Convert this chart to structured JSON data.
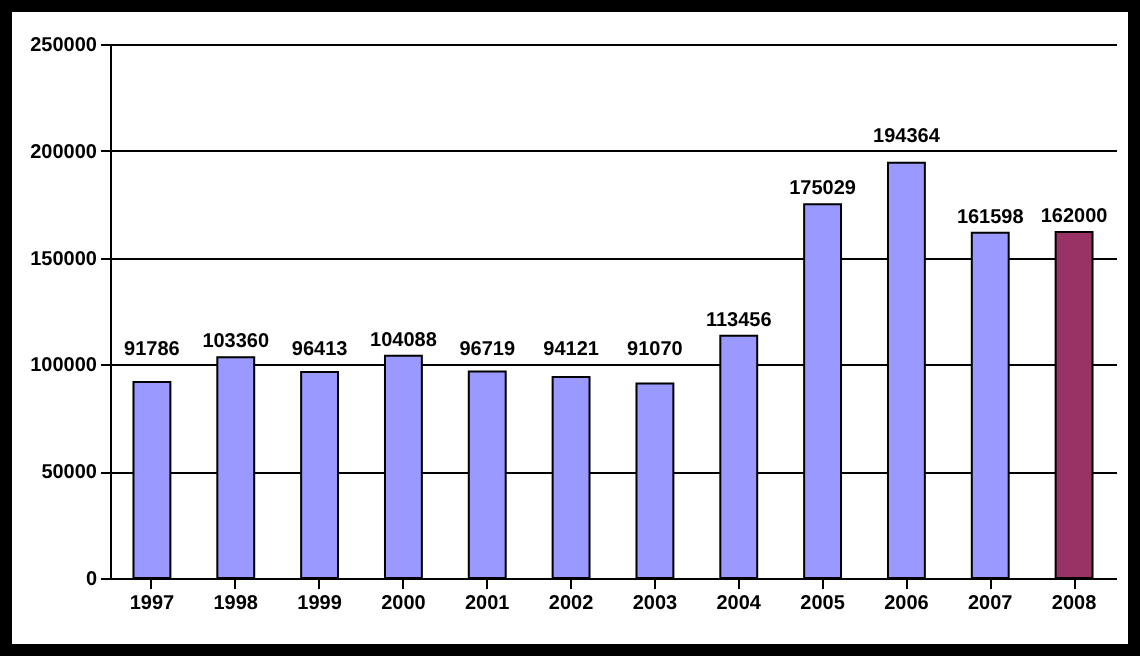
{
  "chart_data": {
    "type": "bar",
    "categories": [
      "1997",
      "1998",
      "1999",
      "2000",
      "2001",
      "2002",
      "2003",
      "2004",
      "2005",
      "2006",
      "2007",
      "2008"
    ],
    "values": [
      91786,
      103360,
      96413,
      104088,
      96719,
      94121,
      91070,
      113456,
      175029,
      194364,
      161598,
      162000
    ],
    "colors": [
      "#9999ff",
      "#9999ff",
      "#9999ff",
      "#9999ff",
      "#9999ff",
      "#9999ff",
      "#9999ff",
      "#9999ff",
      "#9999ff",
      "#9999ff",
      "#9999ff",
      "#993366"
    ],
    "ylim": [
      0,
      250000
    ],
    "yticks": [
      0,
      50000,
      100000,
      150000,
      200000,
      250000
    ],
    "grid": "y",
    "data_labels": true
  }
}
